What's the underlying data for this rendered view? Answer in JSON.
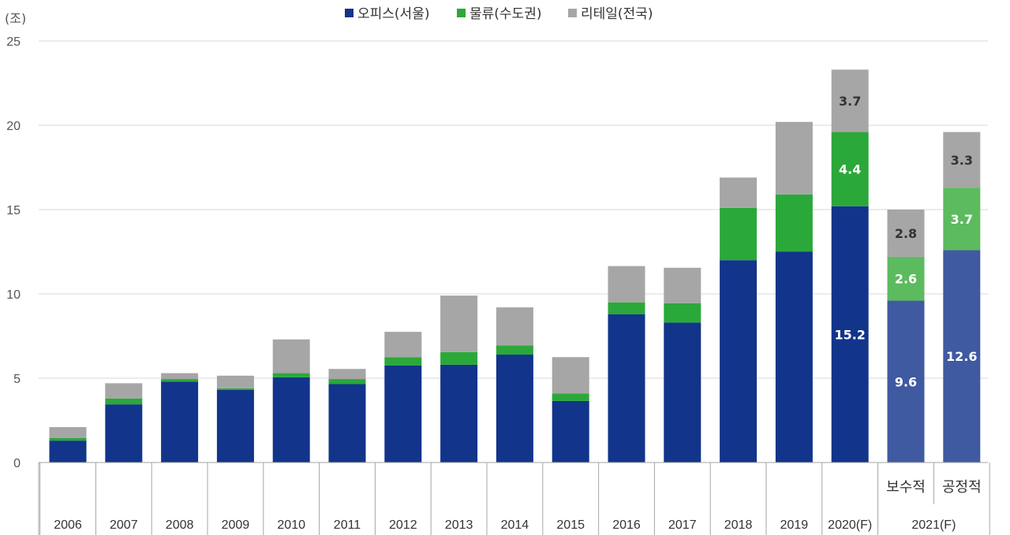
{
  "chart_data": {
    "type": "bar",
    "stacked": true,
    "unit_label": "(조)",
    "ylim": [
      0,
      25
    ],
    "yticks": [
      "0",
      "5",
      "10",
      "15",
      "20",
      "25"
    ],
    "grid": true,
    "legend_position": "top-center",
    "categories": [
      "2006",
      "2007",
      "2008",
      "2009",
      "2010",
      "2011",
      "2012",
      "2013",
      "2014",
      "2015",
      "2016",
      "2017",
      "2018",
      "2019",
      "2020(F)",
      "보수적",
      "공정적"
    ],
    "category_groups": [
      {
        "label": "2021(F)",
        "members": [
          "보수적",
          "공정적"
        ]
      }
    ],
    "series": [
      {
        "name": "오피스(서울)",
        "color": "#12348a",
        "forecast_color": "#3f5aa0",
        "values": [
          1.3,
          3.45,
          4.8,
          4.3,
          5.05,
          4.65,
          5.75,
          5.8,
          6.4,
          3.65,
          8.8,
          8.3,
          12.0,
          12.5,
          15.2,
          9.6,
          12.6
        ],
        "labels": {
          "14": "15.2",
          "15": "9.6",
          "16": "12.6"
        }
      },
      {
        "name": "물류(수도권)",
        "color": "#2ba83a",
        "forecast_color": "#5cbb5e",
        "values": [
          0.15,
          0.35,
          0.15,
          0.1,
          0.25,
          0.3,
          0.5,
          0.75,
          0.55,
          0.45,
          0.7,
          1.15,
          3.1,
          3.4,
          4.4,
          2.6,
          3.7
        ],
        "labels": {
          "14": "4.4",
          "15": "2.6",
          "16": "3.7"
        }
      },
      {
        "name": "리테일(전국)",
        "color": "#a6a6a6",
        "forecast_color": "#a6a6a6",
        "values": [
          0.65,
          0.9,
          0.35,
          0.75,
          2.0,
          0.6,
          1.5,
          3.35,
          2.25,
          2.15,
          2.15,
          2.1,
          1.8,
          4.3,
          3.7,
          2.8,
          3.3
        ],
        "labels": {
          "14": "3.7",
          "15": "2.8",
          "16": "3.3"
        }
      }
    ],
    "forecast_indices": [
      15,
      16
    ]
  }
}
